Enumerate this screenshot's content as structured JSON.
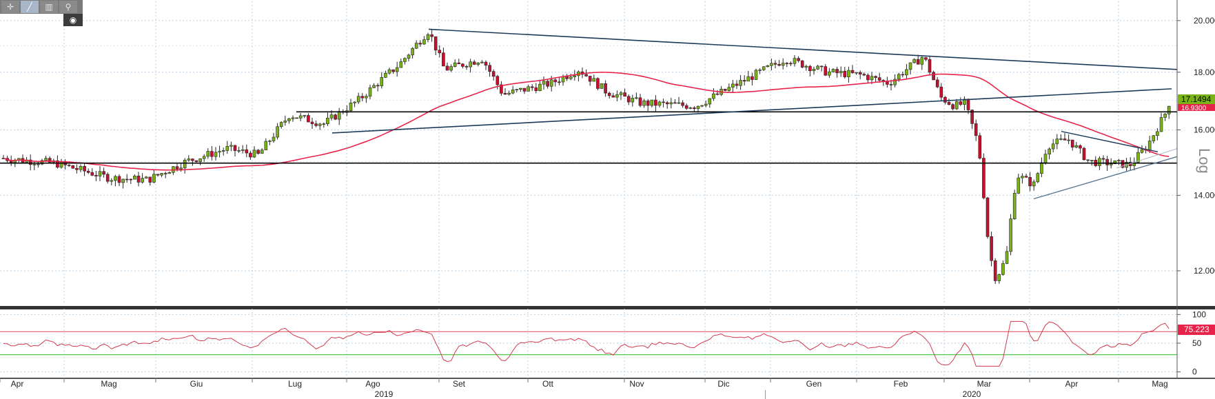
{
  "toolbar": {
    "buttons": [
      {
        "name": "crosshair-icon",
        "glyph": "✛",
        "active": false
      },
      {
        "name": "draw-line-icon",
        "glyph": "╱",
        "active": true
      },
      {
        "name": "bar-chart-icon",
        "glyph": "▥",
        "active": false
      },
      {
        "name": "zoom-icon",
        "glyph": "⚲",
        "active": false
      }
    ],
    "sub_glyph": "◉"
  },
  "chart_data": [
    {
      "type": "candlestick",
      "scale": "log",
      "scale_label": "Log",
      "y_ticks": [
        "12.0000",
        "14.0000",
        "16.0000",
        "18.0000",
        "20.0000"
      ],
      "y_tick_values": [
        12,
        14,
        16,
        18,
        20
      ],
      "ylim": [
        11.2,
        20.8
      ],
      "x_months": [
        "Apr",
        "Mag",
        "Giu",
        "Lug",
        "Ago",
        "Set",
        "Ott",
        "Nov",
        "Dic",
        "Gen",
        "Feb",
        "Mar",
        "Apr",
        "Mag"
      ],
      "x_years": [
        "2019",
        "2020"
      ],
      "last_price": "17.1494",
      "moving_average_value": "16.9300",
      "colors": {
        "up": "#7ab317",
        "down": "#c8102e",
        "ma": "#e8234a",
        "trend": "#1c3a5a",
        "support": "#000000",
        "grid": "#b7cfe3"
      },
      "key_closes": [
        {
          "month": "Apr 2019",
          "value": 15.0
        },
        {
          "month": "Mag 2019",
          "value": 14.5
        },
        {
          "month": "Giu 2019",
          "value": 15.2
        },
        {
          "month": "Lug 2019",
          "value": 16.5
        },
        {
          "month": "Ago 2019",
          "value": 17.2
        },
        {
          "month": "Set 2019",
          "value": 18.2
        },
        {
          "month": "Ott 2019",
          "value": 17.7
        },
        {
          "month": "Nov 2019",
          "value": 16.9
        },
        {
          "month": "Dic 2019",
          "value": 17.9
        },
        {
          "month": "Gen 2020",
          "value": 18.0
        },
        {
          "month": "Feb 2020",
          "value": 18.5
        },
        {
          "month": "Mar 2020",
          "value": 11.9
        },
        {
          "month": "Apr 2020",
          "value": 15.2
        },
        {
          "month": "Mag 2020",
          "value": 17.15
        }
      ],
      "horizontal_levels": [
        16.6,
        14.95
      ]
    },
    {
      "type": "line",
      "indicator": "RSI",
      "y_ticks": [
        "0",
        "50",
        "100"
      ],
      "y_tick_values": [
        0,
        50,
        100
      ],
      "ylim": [
        -10,
        110
      ],
      "overbought": 70,
      "oversold": 30,
      "last_value": "75.223"
    }
  ]
}
